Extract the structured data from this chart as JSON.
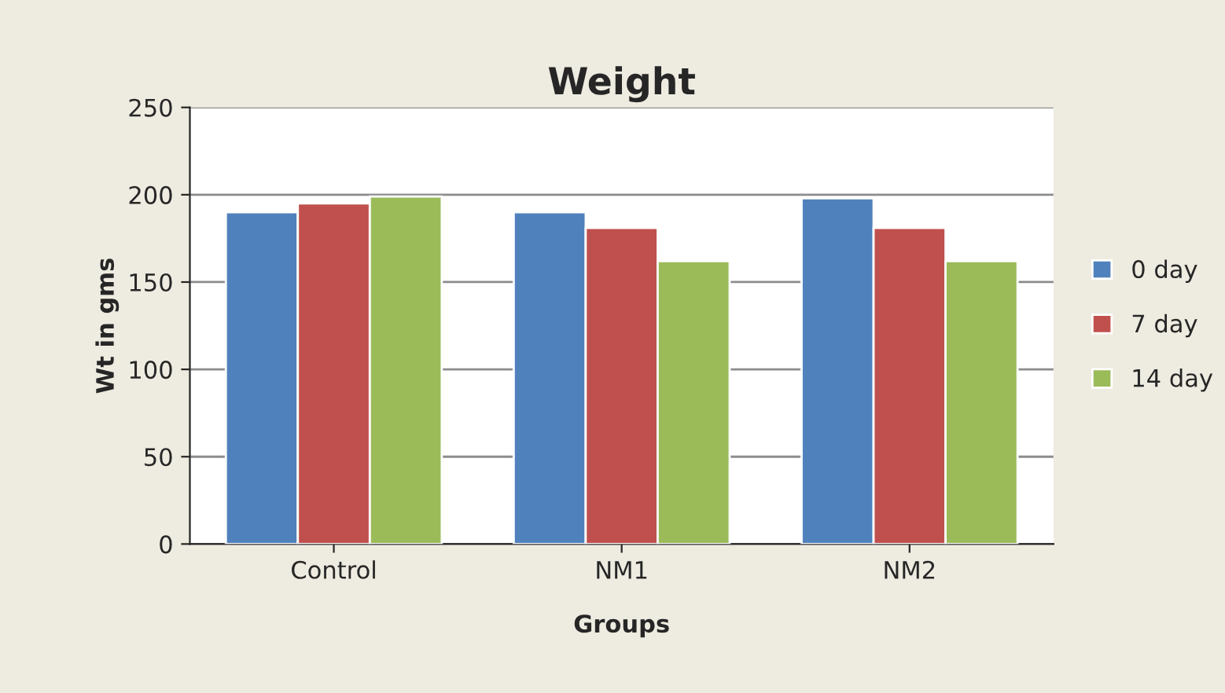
{
  "chart_data": {
    "type": "bar",
    "title": "Weight",
    "xlabel": "Groups",
    "ylabel": "Wt in gms",
    "categories": [
      "Control",
      "NM1",
      "NM2"
    ],
    "series": [
      {
        "name": "0 day",
        "color": "#4f81bd",
        "values": [
          190,
          190,
          198
        ]
      },
      {
        "name": "7 day",
        "color": "#c0504d",
        "values": [
          195,
          181,
          181
        ]
      },
      {
        "name": "14 day",
        "color": "#9bbb59",
        "values": [
          199,
          162,
          162
        ]
      }
    ],
    "ylim": [
      0,
      250
    ],
    "yticks": [
      0,
      50,
      100,
      150,
      200,
      250
    ],
    "grid": "y",
    "legend": "right"
  }
}
